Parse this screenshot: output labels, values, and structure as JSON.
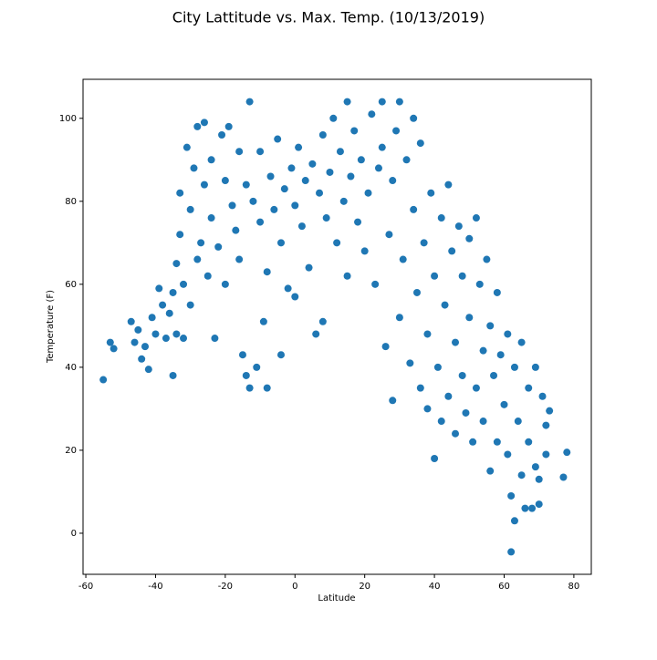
{
  "chart_data": {
    "type": "scatter",
    "title": "City Lattitude vs. Max. Temp. (10/13/2019)",
    "x_label": "Latitude",
    "y_label": "Temperature (F)",
    "color": "#1f77b4",
    "xlim": [
      -60.8,
      85
    ],
    "ylim": [
      -9.9,
      109.4
    ],
    "xticks": [
      -60,
      -40,
      -20,
      0,
      20,
      40,
      60,
      80
    ],
    "yticks": [
      0,
      20,
      40,
      60,
      80,
      100
    ],
    "x": [
      -55,
      -53,
      -52,
      -47,
      -46,
      -45,
      -44,
      -43,
      -42,
      -41,
      -40,
      -39,
      -38,
      -37,
      -36,
      -35,
      -35,
      -34,
      -34,
      -33,
      -33,
      -32,
      -32,
      -31,
      -30,
      -30,
      -29,
      -28,
      -28,
      -27,
      -26,
      -26,
      -25,
      -24,
      -24,
      -23,
      -22,
      -21,
      -20,
      -20,
      -19,
      -18,
      -17,
      -16,
      -16,
      -15,
      -14,
      -14,
      -13,
      -13,
      -12,
      -11,
      -10,
      -10,
      -9,
      -8,
      -8,
      -7,
      -6,
      -5,
      -4,
      -4,
      -3,
      -2,
      -1,
      0,
      0,
      1,
      2,
      3,
      4,
      5,
      6,
      7,
      8,
      8,
      9,
      10,
      11,
      12,
      13,
      14,
      15,
      15,
      16,
      17,
      18,
      19,
      20,
      21,
      22,
      23,
      24,
      25,
      25,
      26,
      27,
      28,
      28,
      29,
      30,
      30,
      31,
      32,
      33,
      34,
      34,
      35,
      36,
      36,
      37,
      38,
      38,
      39,
      40,
      40,
      41,
      42,
      42,
      43,
      44,
      44,
      45,
      46,
      46,
      47,
      48,
      48,
      49,
      50,
      50,
      51,
      52,
      52,
      53,
      54,
      54,
      55,
      56,
      56,
      57,
      58,
      58,
      59,
      60,
      61,
      61,
      62,
      62,
      63,
      63,
      64,
      65,
      65,
      66,
      67,
      67,
      68,
      69,
      69,
      70,
      70,
      71,
      72,
      72,
      73,
      77,
      78
    ],
    "y": [
      37,
      46,
      44.5,
      51,
      46,
      49,
      42,
      45,
      39.5,
      52,
      48,
      59,
      55,
      47,
      53,
      58,
      38,
      65,
      48,
      72,
      82,
      60,
      47,
      93,
      78,
      55,
      88,
      98,
      66,
      70,
      84,
      99,
      62,
      90,
      76,
      47,
      69,
      96,
      85,
      60,
      98,
      79,
      73,
      66,
      92,
      43,
      38,
      84,
      104,
      35,
      80,
      40,
      75,
      92,
      51,
      35,
      63,
      86,
      78,
      95,
      43,
      70,
      83,
      59,
      88,
      79,
      57,
      93,
      74,
      85,
      64,
      89,
      48,
      82,
      96,
      51,
      76,
      87,
      100,
      70,
      92,
      80,
      104,
      62,
      86,
      97,
      75,
      90,
      68,
      82,
      101,
      60,
      88,
      93,
      104,
      45,
      72,
      32,
      85,
      97,
      104,
      52,
      66,
      90,
      41,
      78,
      100,
      58,
      35,
      94,
      70,
      48,
      30,
      82,
      18,
      62,
      40,
      76,
      27,
      55,
      84,
      33,
      68,
      24,
      46,
      74,
      38,
      62,
      29,
      71,
      52,
      22,
      76,
      35,
      60,
      44,
      27,
      66,
      15,
      50,
      38,
      58,
      22,
      43,
      31,
      19,
      48,
      -4.5,
      9,
      3,
      40,
      27,
      46,
      14,
      6,
      35,
      22,
      6,
      40,
      16,
      13,
      7,
      33,
      19,
      26,
      29.5,
      13.5,
      19.5
    ]
  }
}
